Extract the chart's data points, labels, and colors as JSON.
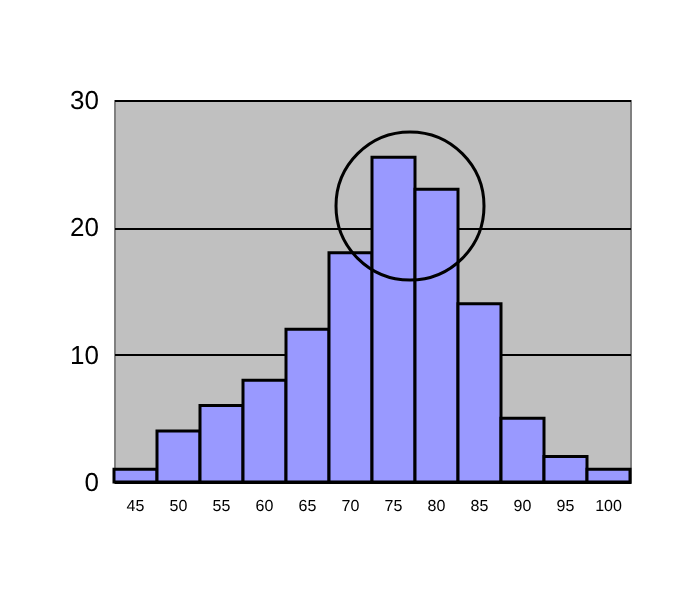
{
  "chart_data": {
    "type": "bar",
    "categories": [
      "45",
      "50",
      "55",
      "60",
      "65",
      "70",
      "75",
      "80",
      "85",
      "90",
      "95",
      "100"
    ],
    "values": [
      1,
      4,
      6,
      8,
      12,
      18,
      25.5,
      23,
      14,
      5,
      2,
      1
    ],
    "color": "#9999ff",
    "ylim": [
      0,
      30
    ],
    "yticks": [
      0,
      10,
      20,
      30
    ],
    "grid": "y"
  }
}
